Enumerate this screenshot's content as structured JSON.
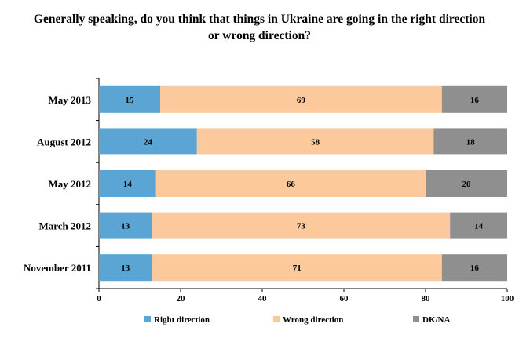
{
  "chart_data": {
    "type": "bar",
    "orientation": "horizontal",
    "stacked": true,
    "title_lines": [
      "Generally speaking, do you think that things in Ukraine are going in the right direction",
      "or wrong direction?"
    ],
    "xlabel": "",
    "ylabel": "",
    "categories": [
      "May 2013",
      "August 2012",
      "May 2012",
      "March 2012",
      "November 2011"
    ],
    "series": [
      {
        "name": "Right direction",
        "color": "#5aa5d3",
        "values": [
          15,
          24,
          14,
          13,
          13
        ]
      },
      {
        "name": "Wrong direction",
        "color": "#fbc99c",
        "values": [
          69,
          58,
          66,
          73,
          71
        ]
      },
      {
        "name": "DK/NA",
        "color": "#8f8f8f",
        "values": [
          16,
          18,
          20,
          14,
          16
        ]
      }
    ],
    "xlim": [
      0,
      100
    ],
    "xticks": [
      0,
      20,
      40,
      60,
      80,
      100
    ],
    "grid": false,
    "legend_position": "bottom"
  }
}
